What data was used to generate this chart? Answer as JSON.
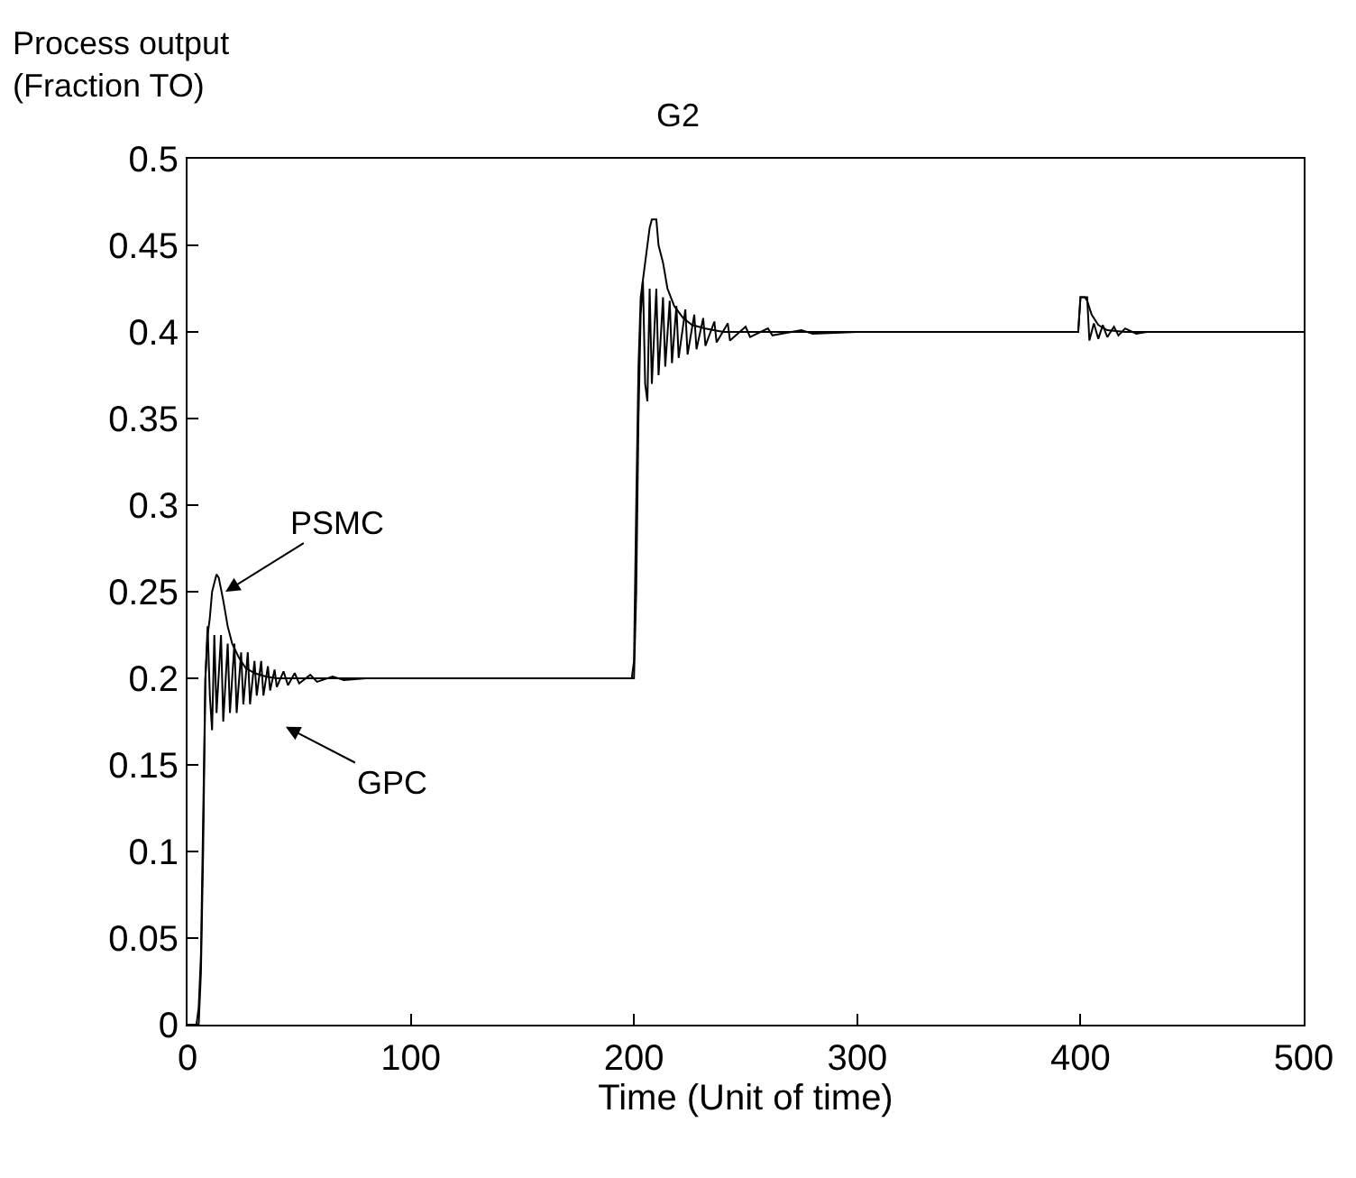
{
  "chart_data": {
    "type": "line",
    "title": "G2",
    "xlabel": "Time (Unit of time)",
    "ylabel": "Process output\n(Fraction TO)",
    "xlim": [
      0,
      500
    ],
    "xticks": [
      0,
      100,
      200,
      300,
      400,
      500
    ],
    "ylim": [
      0,
      0.5
    ],
    "yticks": [
      0,
      0.05,
      0.1,
      0.15,
      0.2,
      0.25,
      0.3,
      0.35,
      0.4,
      0.45,
      0.5
    ],
    "legend": false,
    "marker": "none",
    "line_style": "solid",
    "series": [
      {
        "name": "PSMC",
        "color": "#000000",
        "x": [
          0,
          5,
          6,
          7,
          8,
          9,
          10,
          11,
          13,
          14,
          16,
          18,
          20,
          23,
          26,
          30,
          35,
          40,
          199,
          200,
          201,
          202,
          203,
          205,
          207,
          208,
          210,
          211,
          213,
          215,
          218,
          222,
          226,
          232,
          240,
          399,
          400,
          402,
          403,
          405,
          408,
          412,
          420,
          500
        ],
        "values": [
          0,
          0,
          0.03,
          0.1,
          0.2,
          0.225,
          0.235,
          0.25,
          0.26,
          0.258,
          0.245,
          0.23,
          0.22,
          0.212,
          0.206,
          0.203,
          0.201,
          0.2,
          0.2,
          0.21,
          0.3,
          0.38,
          0.42,
          0.44,
          0.46,
          0.465,
          0.465,
          0.45,
          0.44,
          0.425,
          0.415,
          0.408,
          0.404,
          0.402,
          0.4,
          0.4,
          0.42,
          0.42,
          0.418,
          0.41,
          0.404,
          0.401,
          0.4,
          0.4
        ]
      },
      {
        "name": "GPC",
        "color": "#000000",
        "x": [
          0,
          4,
          5,
          6,
          7,
          8,
          9,
          10,
          11,
          12,
          13,
          15,
          16,
          18,
          19,
          21,
          22,
          24,
          25,
          27,
          28,
          30,
          31,
          33,
          34,
          36,
          37,
          39,
          40,
          43,
          45,
          48,
          50,
          55,
          58,
          65,
          70,
          80,
          200,
          201,
          202,
          203,
          204,
          205,
          206,
          207,
          208,
          210,
          211,
          213,
          214,
          216,
          217,
          219,
          220,
          223,
          224,
          227,
          228,
          231,
          232,
          236,
          237,
          242,
          243,
          250,
          252,
          260,
          262,
          275,
          280,
          300,
          399,
          400,
          403,
          404,
          406,
          408,
          410,
          412,
          415,
          417,
          420,
          425,
          430,
          500
        ],
        "values": [
          0,
          0,
          0.01,
          0.04,
          0.12,
          0.2,
          0.23,
          0.19,
          0.17,
          0.225,
          0.18,
          0.225,
          0.175,
          0.22,
          0.18,
          0.22,
          0.18,
          0.215,
          0.185,
          0.215,
          0.185,
          0.21,
          0.19,
          0.21,
          0.19,
          0.207,
          0.193,
          0.205,
          0.195,
          0.204,
          0.196,
          0.203,
          0.197,
          0.202,
          0.198,
          0.201,
          0.199,
          0.2,
          0.2,
          0.25,
          0.35,
          0.41,
          0.43,
          0.37,
          0.36,
          0.425,
          0.37,
          0.425,
          0.375,
          0.42,
          0.38,
          0.418,
          0.382,
          0.415,
          0.385,
          0.413,
          0.387,
          0.41,
          0.39,
          0.408,
          0.392,
          0.406,
          0.394,
          0.405,
          0.395,
          0.403,
          0.397,
          0.402,
          0.398,
          0.401,
          0.399,
          0.4,
          0.4,
          0.42,
          0.42,
          0.395,
          0.405,
          0.396,
          0.404,
          0.397,
          0.403,
          0.398,
          0.402,
          0.399,
          0.4,
          0.4
        ]
      }
    ]
  }
}
